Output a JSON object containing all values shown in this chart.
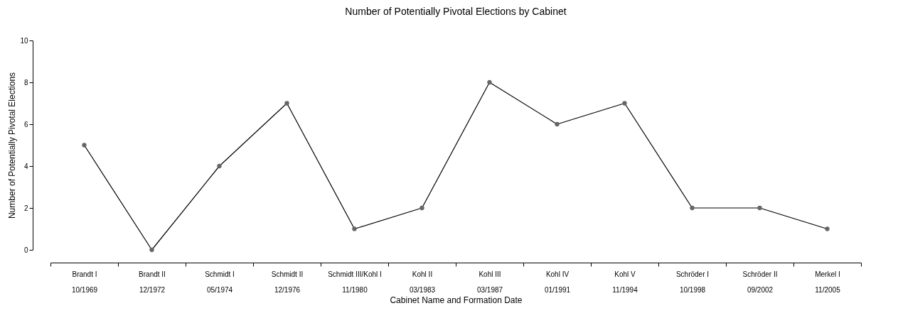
{
  "chart_data": {
    "type": "line",
    "title": "Number of Potentially Pivotal Elections by Cabinet",
    "xlabel": "Cabinet Name and Formation Date",
    "ylabel": "Number of Potentially Pivotal Elections",
    "categories": [
      "Brandt I\n10/1969",
      "Brandt II\n12/1972",
      "Schmidt I\n05/1974",
      "Schmidt II\n12/1976",
      "Schmidt III/Kohl I\n11/1980",
      "Kohl II\n03/1983",
      "Kohl III\n03/1987",
      "Kohl IV\n01/1991",
      "Kohl V\n11/1994",
      "Schröder I\n10/1998",
      "Schröder II\n09/2002",
      "Merkel I\n11/2005"
    ],
    "series": [
      {
        "color": "#000000",
        "values": [
          5,
          0,
          4,
          7,
          1,
          2,
          8,
          6,
          7,
          2,
          2,
          1
        ]
      }
    ],
    "marker": "circle",
    "ylim": [
      0,
      10
    ],
    "yticks": [
      0,
      2,
      4,
      6,
      8,
      10
    ],
    "grid": false
  }
}
